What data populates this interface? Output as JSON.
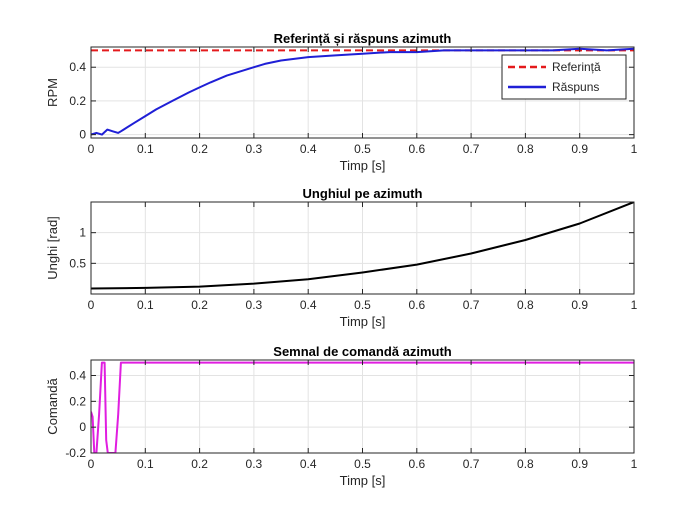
{
  "chart_data": [
    {
      "type": "line",
      "title": "Referință și răspuns azimuth",
      "xlabel": "Timp [s]",
      "ylabel": "RPM",
      "xlim": [
        0,
        1
      ],
      "ylim": [
        -0.02,
        0.52
      ],
      "xticks": [
        0,
        0.1,
        0.2,
        0.3,
        0.4,
        0.5,
        0.6,
        0.7,
        0.8,
        0.9,
        1
      ],
      "yticks": [
        0,
        0.2,
        0.4
      ],
      "grid": true,
      "legend": "top-right",
      "series": [
        {
          "name": "Referință",
          "color": "#e41a1c",
          "style": "dashed",
          "x": [
            0,
            1
          ],
          "y": [
            0.5,
            0.5
          ]
        },
        {
          "name": "Răspuns",
          "color": "#1f1fd6",
          "style": "solid",
          "x": [
            0,
            0.01,
            0.02,
            0.03,
            0.04,
            0.05,
            0.055,
            0.06,
            0.08,
            0.1,
            0.12,
            0.15,
            0.18,
            0.2,
            0.22,
            0.25,
            0.28,
            0.3,
            0.32,
            0.35,
            0.4,
            0.45,
            0.5,
            0.55,
            0.6,
            0.65,
            0.7,
            0.75,
            0.8,
            0.85,
            0.9,
            0.95,
            1.0
          ],
          "y": [
            0,
            0.01,
            0.0,
            0.03,
            0.02,
            0.01,
            0.02,
            0.03,
            0.07,
            0.11,
            0.15,
            0.2,
            0.25,
            0.28,
            0.31,
            0.35,
            0.38,
            0.4,
            0.42,
            0.44,
            0.46,
            0.47,
            0.48,
            0.49,
            0.49,
            0.5,
            0.5,
            0.5,
            0.5,
            0.5,
            0.51,
            0.5,
            0.51
          ]
        }
      ]
    },
    {
      "type": "line",
      "title": "Unghiul pe azimuth",
      "xlabel": "Timp [s]",
      "ylabel": "Unghi [rad]",
      "xlim": [
        0,
        1
      ],
      "ylim": [
        0,
        1.5
      ],
      "xticks": [
        0,
        0.1,
        0.2,
        0.3,
        0.4,
        0.5,
        0.6,
        0.7,
        0.8,
        0.9,
        1
      ],
      "yticks": [
        0.5,
        1
      ],
      "grid": true,
      "series": [
        {
          "color": "#000000",
          "style": "solid",
          "x": [
            0,
            0.1,
            0.2,
            0.3,
            0.4,
            0.5,
            0.6,
            0.7,
            0.8,
            0.9,
            1.0
          ],
          "y": [
            0.09,
            0.1,
            0.12,
            0.17,
            0.24,
            0.35,
            0.48,
            0.66,
            0.88,
            1.15,
            1.5
          ]
        }
      ]
    },
    {
      "type": "line",
      "title": "Semnal de comandă azimuth",
      "xlabel": "Timp [s]",
      "ylabel": "Comandă",
      "xlim": [
        0,
        1
      ],
      "ylim": [
        -0.2,
        0.52
      ],
      "xticks": [
        0,
        0.1,
        0.2,
        0.3,
        0.4,
        0.5,
        0.6,
        0.7,
        0.8,
        0.9,
        1
      ],
      "yticks": [
        -0.2,
        0,
        0.2,
        0.4
      ],
      "grid": true,
      "series": [
        {
          "color": "#e01ee0",
          "style": "solid",
          "x": [
            0,
            0.003,
            0.006,
            0.01,
            0.015,
            0.02,
            0.025,
            0.028,
            0.031,
            0.035,
            0.04,
            0.045,
            0.05,
            0.055,
            0.06,
            0.1,
            0.2,
            0.3,
            0.4,
            0.5,
            0.6,
            0.7,
            0.8,
            0.9,
            1.0
          ],
          "y": [
            0.12,
            0.08,
            -0.2,
            -0.2,
            0.1,
            0.5,
            0.5,
            -0.1,
            -0.2,
            -0.2,
            -0.2,
            -0.2,
            0.1,
            0.5,
            0.5,
            0.5,
            0.5,
            0.5,
            0.5,
            0.5,
            0.5,
            0.5,
            0.5,
            0.5,
            0.5
          ]
        }
      ]
    }
  ]
}
